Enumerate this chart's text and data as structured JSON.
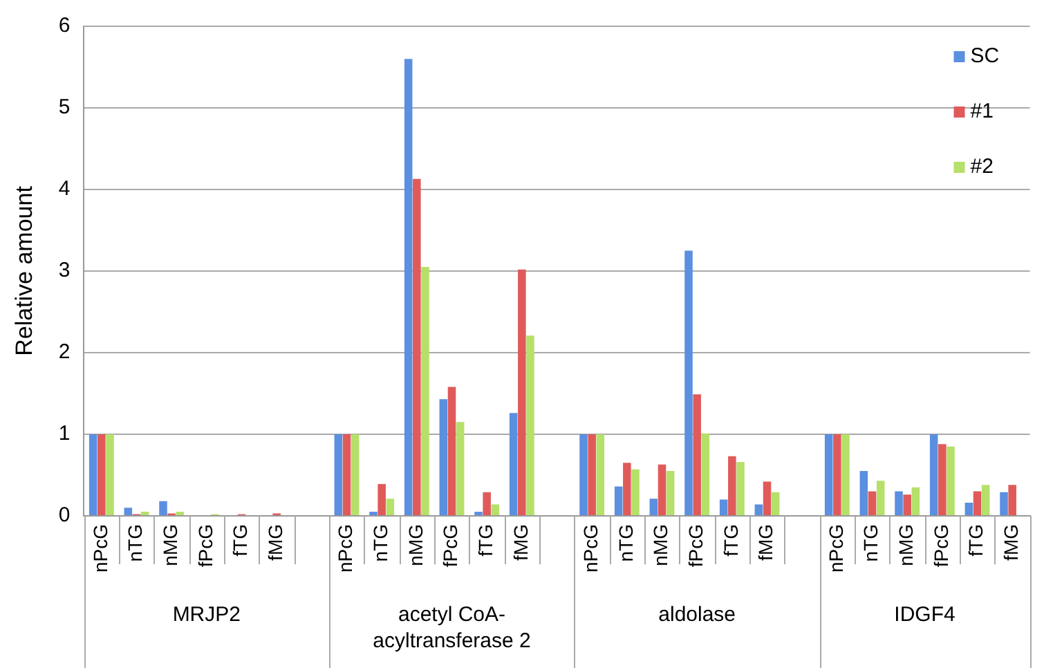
{
  "chart_data": {
    "type": "bar",
    "ylabel": "Relative amount",
    "categories": [
      "nPcG",
      "nTG",
      "nMG",
      "fPcG",
      "fTG",
      "fMG",
      null,
      "nPcG",
      "nTG",
      "nMG",
      "fPcG",
      "fTG",
      "fMG",
      null,
      "nPcG",
      "nTG",
      "nMG",
      "fPcG",
      "fTG",
      "fMG",
      null,
      "nPcG",
      "nTG",
      "nMG",
      "fPcG",
      "fTG",
      "fMG"
    ],
    "series": [
      {
        "name": "SC",
        "color": "#5b8fe0",
        "values": [
          1,
          0.1,
          0.18,
          0,
          0,
          0,
          null,
          1,
          0.05,
          5.6,
          1.43,
          0.05,
          1.26,
          null,
          1,
          0.36,
          0.21,
          3.25,
          0.2,
          0.14,
          null,
          1,
          0.55,
          0.3,
          1,
          0.16,
          0.29
        ]
      },
      {
        "name": "#1",
        "color": "#e05a5a",
        "values": [
          1,
          0.02,
          0.03,
          0,
          0.02,
          0.03,
          null,
          1,
          0.39,
          4.13,
          1.58,
          0.29,
          3.02,
          null,
          1,
          0.65,
          0.63,
          1.49,
          0.73,
          0.42,
          null,
          1,
          0.3,
          0.26,
          0.88,
          0.3,
          0.38
        ]
      },
      {
        "name": "#2",
        "color": "#b5e06a",
        "values": [
          1,
          0.05,
          0.05,
          0.02,
          0,
          0,
          null,
          1,
          0.21,
          3.05,
          1.15,
          0.14,
          2.21,
          null,
          1,
          0.57,
          0.55,
          1.01,
          0.66,
          0.29,
          null,
          1,
          0.43,
          0.35,
          0.85,
          0.38,
          null
        ]
      }
    ],
    "annotations": [
      "MRJP2",
      "acetyl CoA-acyltransferase 2",
      "aldolase",
      "IDGF4"
    ],
    "ylim": [
      0,
      6
    ],
    "yticks": [
      0,
      1,
      2,
      3,
      4,
      5,
      6
    ],
    "grid": "y",
    "legend": "top right"
  }
}
